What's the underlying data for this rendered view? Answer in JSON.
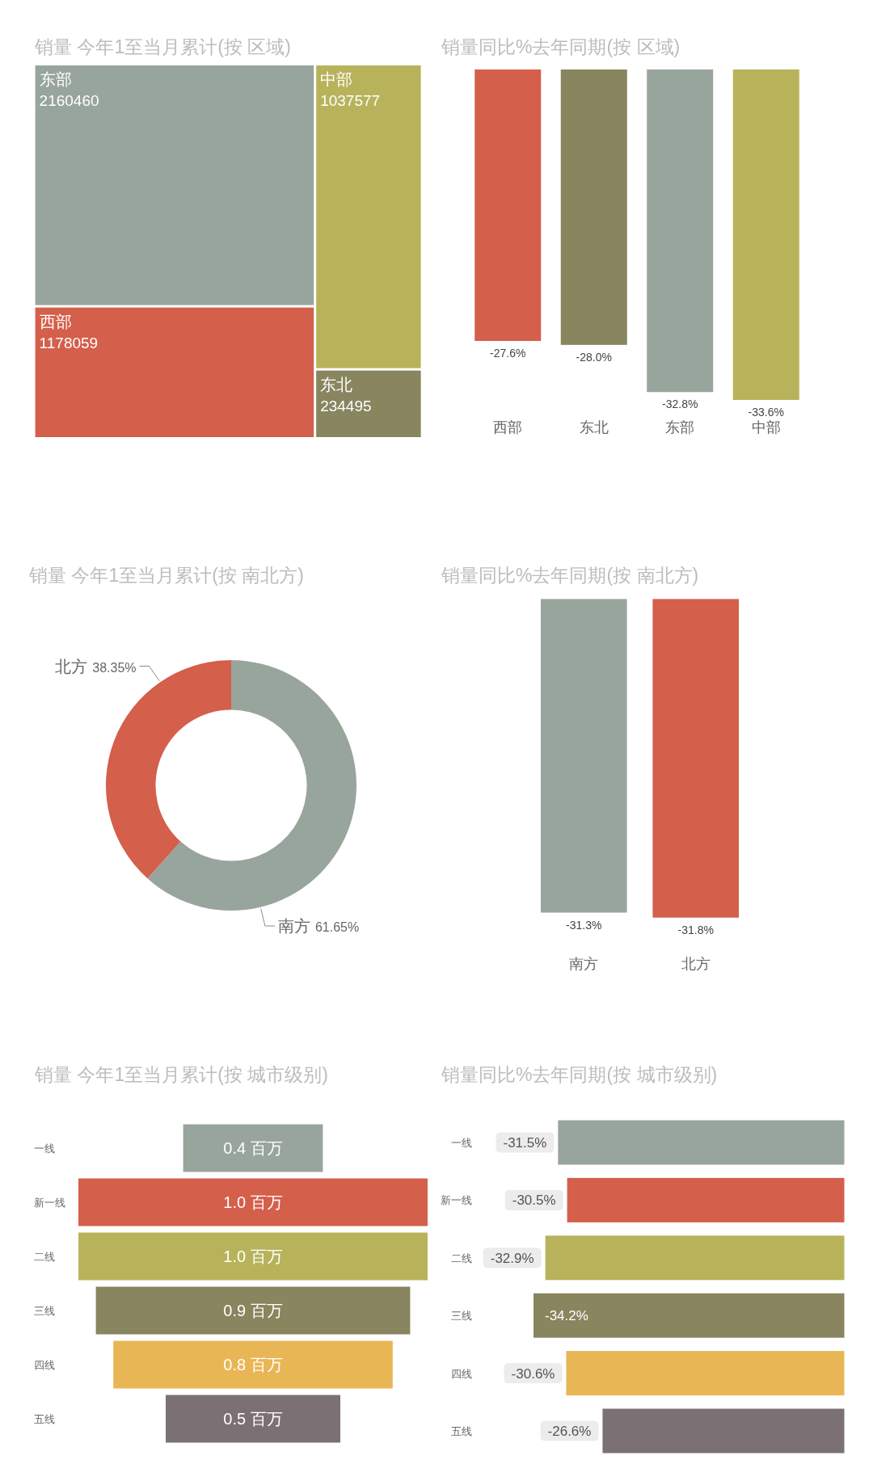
{
  "chart_data": [
    {
      "type": "other",
      "title": "销量 今年1至当月累计(按 区域)",
      "categories": [
        "东部",
        "西部",
        "中部",
        "东北"
      ],
      "values": [
        2160460,
        1178059,
        1037577,
        234495
      ],
      "colors": [
        "#98a59c",
        "#d45f4b",
        "#b8b35b",
        "#88855f"
      ],
      "data_labels": true
    },
    {
      "type": "bar",
      "title": "销量同比%去年同期(按 区域)",
      "categories": [
        "西部",
        "东北",
        "东部",
        "中部"
      ],
      "values": [
        -27.6,
        -28.0,
        -32.8,
        -33.6
      ],
      "colors": [
        "#d45f4b",
        "#88855f",
        "#98a59c",
        "#b8b35b"
      ],
      "value_labels": [
        "-27.6%",
        "-28.0%",
        "-32.8%",
        "-33.6%"
      ]
    },
    {
      "type": "donut",
      "title": "销量 今年1至当月累计(按 南北方)",
      "categories": [
        "南方",
        "北方"
      ],
      "values": [
        61.65,
        38.35
      ],
      "colors": [
        "#98a59c",
        "#d45f4b"
      ],
      "value_labels": [
        "61.65%",
        "38.35%"
      ]
    },
    {
      "type": "bar",
      "title": "销量同比%去年同期(按 南北方)",
      "categories": [
        "南方",
        "北方"
      ],
      "values": [
        -31.3,
        -31.8
      ],
      "colors": [
        "#98a59c",
        "#d45f4b"
      ],
      "value_labels": [
        "-31.3%",
        "-31.8%"
      ]
    },
    {
      "type": "other",
      "title": "销量 今年1至当月累计(按 城市级别)",
      "categories": [
        "一线",
        "新一线",
        "二线",
        "三线",
        "四线",
        "五线"
      ],
      "values": [
        0.4,
        1.0,
        1.0,
        0.9,
        0.8,
        0.5
      ],
      "colors": [
        "#98a59c",
        "#d45f4b",
        "#b8b35b",
        "#88855f",
        "#e8b654",
        "#7b7175"
      ],
      "value_labels": [
        "0.4 百万",
        "1.0 百万",
        "1.0 百万",
        "0.9 百万",
        "0.8 百万",
        "0.5 百万"
      ]
    },
    {
      "type": "bar",
      "orientation": "horizontal",
      "title": "销量同比%去年同期(按 城市级别)",
      "categories": [
        "一线",
        "新一线",
        "二线",
        "三线",
        "四线",
        "五线"
      ],
      "values": [
        -31.5,
        -30.5,
        -32.9,
        -34.2,
        -30.6,
        -26.6
      ],
      "colors": [
        "#98a59c",
        "#d45f4b",
        "#b8b35b",
        "#88855f",
        "#e8b654",
        "#7b7175"
      ],
      "value_labels": [
        "-31.5%",
        "-30.5%",
        "-32.9%",
        "-34.2%",
        "-30.6%",
        "-26.6%"
      ]
    }
  ]
}
